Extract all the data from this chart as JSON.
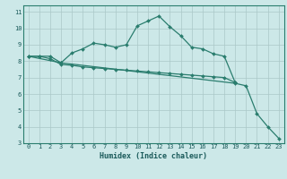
{
  "xlabel": "Humidex (Indice chaleur)",
  "line_color": "#2a7d6e",
  "background_color": "#cce8e8",
  "grid_color": "#aac8c8",
  "xlim": [
    -0.5,
    23.5
  ],
  "ylim": [
    3,
    11.4
  ],
  "xticks": [
    0,
    1,
    2,
    3,
    4,
    5,
    6,
    7,
    8,
    9,
    10,
    11,
    12,
    13,
    14,
    15,
    16,
    17,
    18,
    19,
    20,
    21,
    22,
    23
  ],
  "yticks": [
    3,
    4,
    5,
    6,
    7,
    8,
    9,
    10,
    11
  ],
  "line1_x": [
    0,
    1,
    2,
    3,
    4,
    5,
    6,
    7,
    8,
    9,
    10,
    11,
    12,
    13,
    14,
    15,
    16,
    17,
    18,
    19
  ],
  "line1_y": [
    8.3,
    8.3,
    8.3,
    7.9,
    8.5,
    8.75,
    9.1,
    9.0,
    8.85,
    9.0,
    10.15,
    10.45,
    10.75,
    10.1,
    9.55,
    8.85,
    8.75,
    8.45,
    8.3,
    6.7
  ],
  "line2_x": [
    0,
    1,
    2,
    3,
    4,
    5,
    6,
    7,
    8,
    9,
    10,
    11,
    12,
    13,
    14,
    15,
    16,
    17,
    18,
    19
  ],
  "line2_y": [
    8.3,
    8.3,
    8.15,
    7.8,
    7.75,
    7.65,
    7.6,
    7.55,
    7.5,
    7.45,
    7.4,
    7.35,
    7.3,
    7.25,
    7.2,
    7.15,
    7.1,
    7.05,
    7.0,
    6.7
  ],
  "line3_x": [
    0,
    3,
    19,
    20,
    21,
    22,
    23
  ],
  "line3_y": [
    8.3,
    7.9,
    6.65,
    6.5,
    4.8,
    4.0,
    3.3
  ]
}
